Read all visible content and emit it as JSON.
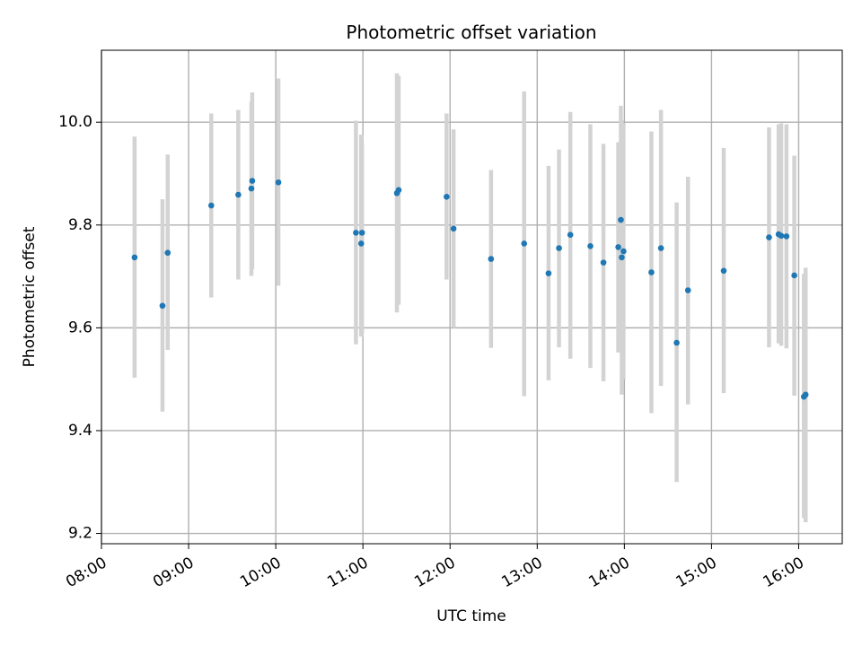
{
  "chart_data": {
    "type": "scatter",
    "title": "Photometric offset variation",
    "xlabel": "UTC time",
    "ylabel": "Photometric offset",
    "x_unit": "hours UTC",
    "xlim": [
      8.0,
      16.5
    ],
    "ylim": [
      9.18,
      10.14
    ],
    "grid": true,
    "x_ticks": [
      8,
      9,
      10,
      11,
      12,
      13,
      14,
      15,
      16
    ],
    "x_tick_labels": [
      "08:00",
      "09:00",
      "10:00",
      "11:00",
      "12:00",
      "13:00",
      "14:00",
      "15:00",
      "16:00"
    ],
    "y_ticks": [
      9.2,
      9.4,
      9.6,
      9.8,
      10.0
    ],
    "y_tick_labels": [
      "9.2",
      "9.4",
      "9.6",
      "9.8",
      "10.0"
    ],
    "colors": {
      "point": "#1f77b4",
      "errorbar": "#d3d3d3",
      "grid": "#b0b0b0",
      "axes": "#000000"
    },
    "points": [
      {
        "x": 8.38,
        "y": 9.737,
        "lo": 9.503,
        "hi": 9.972
      },
      {
        "x": 8.7,
        "y": 9.643,
        "lo": 9.437,
        "hi": 9.85
      },
      {
        "x": 8.76,
        "y": 9.746,
        "lo": 9.557,
        "hi": 9.937
      },
      {
        "x": 9.26,
        "y": 9.838,
        "lo": 9.659,
        "hi": 10.017
      },
      {
        "x": 9.57,
        "y": 9.859,
        "lo": 9.694,
        "hi": 10.024
      },
      {
        "x": 9.72,
        "y": 9.871,
        "lo": 9.701,
        "hi": 10.04
      },
      {
        "x": 9.73,
        "y": 9.886,
        "lo": 9.714,
        "hi": 10.058
      },
      {
        "x": 10.03,
        "y": 9.883,
        "lo": 9.682,
        "hi": 10.085
      },
      {
        "x": 10.92,
        "y": 9.785,
        "lo": 9.568,
        "hi": 10.003
      },
      {
        "x": 10.98,
        "y": 9.764,
        "lo": 9.583,
        "hi": 9.976
      },
      {
        "x": 10.99,
        "y": 9.785,
        "lo": 9.59,
        "hi": 9.96
      },
      {
        "x": 11.39,
        "y": 9.862,
        "lo": 9.63,
        "hi": 10.095
      },
      {
        "x": 11.41,
        "y": 9.868,
        "lo": 9.645,
        "hi": 10.09
      },
      {
        "x": 11.96,
        "y": 9.855,
        "lo": 9.694,
        "hi": 10.017
      },
      {
        "x": 12.04,
        "y": 9.793,
        "lo": 9.6,
        "hi": 9.986
      },
      {
        "x": 12.47,
        "y": 9.734,
        "lo": 9.561,
        "hi": 9.907
      },
      {
        "x": 12.85,
        "y": 9.764,
        "lo": 9.467,
        "hi": 10.06
      },
      {
        "x": 13.13,
        "y": 9.706,
        "lo": 9.498,
        "hi": 9.915
      },
      {
        "x": 13.25,
        "y": 9.755,
        "lo": 9.562,
        "hi": 9.947
      },
      {
        "x": 13.38,
        "y": 9.781,
        "lo": 9.54,
        "hi": 10.02
      },
      {
        "x": 13.61,
        "y": 9.759,
        "lo": 9.522,
        "hi": 9.996
      },
      {
        "x": 13.76,
        "y": 9.727,
        "lo": 9.496,
        "hi": 9.958
      },
      {
        "x": 13.93,
        "y": 9.757,
        "lo": 9.552,
        "hi": 9.961
      },
      {
        "x": 13.96,
        "y": 9.81,
        "lo": 9.59,
        "hi": 10.032
      },
      {
        "x": 13.97,
        "y": 9.737,
        "lo": 9.47,
        "hi": 10.004
      },
      {
        "x": 13.99,
        "y": 9.749,
        "lo": 9.5,
        "hi": 9.998
      },
      {
        "x": 14.31,
        "y": 9.708,
        "lo": 9.434,
        "hi": 9.982
      },
      {
        "x": 14.42,
        "y": 9.755,
        "lo": 9.487,
        "hi": 10.024
      },
      {
        "x": 14.6,
        "y": 9.571,
        "lo": 9.3,
        "hi": 9.844
      },
      {
        "x": 14.73,
        "y": 9.673,
        "lo": 9.451,
        "hi": 9.894
      },
      {
        "x": 15.14,
        "y": 9.711,
        "lo": 9.473,
        "hi": 9.95
      },
      {
        "x": 15.66,
        "y": 9.776,
        "lo": 9.562,
        "hi": 9.99
      },
      {
        "x": 15.77,
        "y": 9.782,
        "lo": 9.57,
        "hi": 9.996
      },
      {
        "x": 15.8,
        "y": 9.779,
        "lo": 9.565,
        "hi": 9.998
      },
      {
        "x": 15.86,
        "y": 9.778,
        "lo": 9.56,
        "hi": 9.996
      },
      {
        "x": 15.95,
        "y": 9.702,
        "lo": 9.468,
        "hi": 9.935
      },
      {
        "x": 16.06,
        "y": 9.466,
        "lo": 9.23,
        "hi": 9.705
      },
      {
        "x": 16.08,
        "y": 9.47,
        "lo": 9.222,
        "hi": 9.717
      }
    ]
  }
}
